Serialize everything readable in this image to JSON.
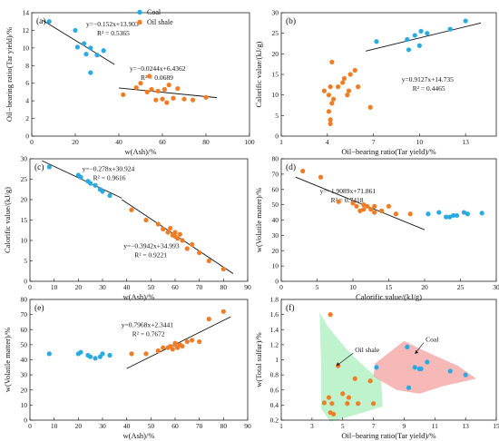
{
  "legend": {
    "series": [
      {
        "name": "Coal",
        "color": "#29abe2"
      },
      {
        "name": "Oil shale",
        "color": "#f07d23"
      }
    ]
  },
  "chart_data": [
    {
      "id": "a",
      "type": "scatter",
      "panel_label": "(a)",
      "xlabel": "w(Ash)/%",
      "ylabel": "Oil−bearing ratio(Tar yield)/%",
      "xlim": [
        0,
        100
      ],
      "ylim": [
        0,
        14
      ],
      "xticks": [
        0,
        20,
        40,
        60,
        80,
        100
      ],
      "yticks": [
        0,
        2,
        4,
        6,
        8,
        10,
        12,
        14
      ],
      "series": [
        {
          "name": "Coal",
          "color": "#29abe2",
          "x": [
            8,
            20,
            21,
            24,
            25,
            27,
            27,
            30,
            33
          ],
          "y": [
            13,
            12,
            10.1,
            10.5,
            9.3,
            7.2,
            10,
            9.2,
            9.7
          ]
        },
        {
          "name": "Oil shale",
          "color": "#f07d23",
          "x": [
            42,
            48,
            50,
            53,
            54,
            55,
            57,
            58,
            60,
            61,
            62,
            63,
            65,
            67,
            70,
            74,
            80
          ],
          "y": [
            4.7,
            5.5,
            6.0,
            5.0,
            6.8,
            5.3,
            4.1,
            5.1,
            4.2,
            5.3,
            3.8,
            5.8,
            4.3,
            5.4,
            4.2,
            4.1,
            4.4
          ]
        }
      ],
      "fits": [
        {
          "label": "y=−0.152x+13.903",
          "r2": "R² = 0.5365",
          "slope": -0.152,
          "intercept": 13.903,
          "x_range": [
            5,
            38
          ]
        },
        {
          "label": "y=−0.0244x+6.4362",
          "r2": "R² = 0.0689",
          "slope": -0.0244,
          "intercept": 6.4362,
          "x_range": [
            40,
            85
          ]
        }
      ]
    },
    {
      "id": "b",
      "type": "scatter",
      "panel_label": "(b)",
      "xlabel": "Oil−bearing ratio(Tar yield)/%",
      "ylabel": "Calorific value/(kJ/g)",
      "xlim": [
        1,
        15
      ],
      "ylim": [
        0,
        30
      ],
      "xticks": [
        1,
        4,
        7,
        10,
        13
      ],
      "yticks": [
        0,
        5,
        10,
        15,
        20,
        25,
        30
      ],
      "series": [
        {
          "name": "Coal",
          "color": "#29abe2",
          "x": [
            7.2,
            9.2,
            9.3,
            9.7,
            10.0,
            10.1,
            10.5,
            12.0,
            13.0
          ],
          "y": [
            23,
            23.5,
            21,
            24.5,
            22,
            25.5,
            25,
            26,
            28
          ]
        },
        {
          "name": "Oil shale",
          "color": "#f07d23",
          "x": [
            3.8,
            4.1,
            4.1,
            4.2,
            4.2,
            4.2,
            4.3,
            4.3,
            4.4,
            4.7,
            5.0,
            5.1,
            5.3,
            5.4,
            5.5,
            5.8,
            6.0,
            6.8
          ],
          "y": [
            11,
            10,
            6,
            4,
            3,
            12,
            8,
            18,
            9,
            12,
            13,
            14,
            10,
            11,
            15,
            16,
            12,
            7
          ]
        }
      ],
      "fits": [
        {
          "label": "y=0.9127x+14.735",
          "r2": "R² = 0.4465",
          "slope": 0.9127,
          "intercept": 14.735,
          "x_range": [
            6.5,
            14
          ]
        }
      ]
    },
    {
      "id": "c",
      "type": "scatter",
      "panel_label": "(c)",
      "xlabel": "w(Ash)/%",
      "ylabel": "Calorific value/(kJ/g)",
      "xlim": [
        0,
        90
      ],
      "ylim": [
        0,
        30
      ],
      "xticks": [
        0,
        10,
        20,
        30,
        40,
        50,
        60,
        70,
        80,
        90
      ],
      "yticks": [
        0,
        5,
        10,
        15,
        20,
        25,
        30
      ],
      "series": [
        {
          "name": "Coal",
          "color": "#29abe2",
          "x": [
            8,
            20,
            21,
            24,
            25,
            27,
            29,
            30,
            33
          ],
          "y": [
            28,
            26,
            25.5,
            24.5,
            24,
            23.5,
            22.5,
            22,
            21
          ]
        },
        {
          "name": "Oil shale",
          "color": "#f07d23",
          "x": [
            42,
            48,
            53,
            55,
            57,
            58,
            59,
            60,
            60,
            61,
            62,
            63,
            65,
            67,
            70,
            74,
            80
          ],
          "y": [
            17.5,
            15,
            14,
            12.8,
            12,
            13,
            11.3,
            11,
            12,
            10.5,
            11.5,
            10,
            8,
            9,
            7,
            5,
            3
          ]
        }
      ],
      "fits": [
        {
          "label": "y=−0.278x+30.924",
          "r2": "R² = 0.9616",
          "slope": -0.278,
          "intercept": 30.924,
          "x_range": [
            5,
            38
          ]
        },
        {
          "label": "y=−0.3942x+34.993",
          "r2": "R² = 0.9221",
          "slope": -0.3942,
          "intercept": 34.993,
          "x_range": [
            38,
            84
          ]
        }
      ]
    },
    {
      "id": "d",
      "type": "scatter",
      "panel_label": "(d)",
      "xlabel": "Calorific value/(kJ/g)",
      "ylabel": "w(Volatile matter)/%",
      "xlim": [
        0,
        30
      ],
      "ylim": [
        0,
        80
      ],
      "xticks": [
        0,
        5,
        10,
        15,
        20,
        25,
        30
      ],
      "yticks": [
        0,
        10,
        20,
        30,
        40,
        50,
        60,
        70,
        80
      ],
      "series": [
        {
          "name": "Coal",
          "color": "#29abe2",
          "x": [
            20.5,
            22,
            23,
            23.5,
            24,
            24.5,
            25.5,
            26,
            28
          ],
          "y": [
            44,
            45,
            42,
            42,
            43,
            43,
            45,
            44,
            44.5
          ]
        },
        {
          "name": "Oil shale",
          "color": "#f07d23",
          "x": [
            3,
            5.5,
            8,
            10,
            10.5,
            11,
            11.5,
            11.5,
            12,
            12.5,
            13,
            13,
            14,
            15,
            16,
            18
          ],
          "y": [
            72,
            68,
            52,
            51,
            49,
            46,
            50,
            47,
            49,
            47,
            49,
            45,
            46,
            49,
            44,
            44
          ]
        }
      ],
      "fits": [
        {
          "label": "y=−1.9089x+71.861",
          "r2": "R² = 0.7418",
          "slope": -1.9089,
          "intercept": 71.861,
          "x_range": [
            2,
            20
          ]
        }
      ]
    },
    {
      "id": "e",
      "type": "scatter",
      "panel_label": "(e)",
      "xlabel": "w(Ash)/%",
      "ylabel": "w(Volatile matter)/%",
      "xlim": [
        0,
        90
      ],
      "ylim": [
        0,
        80
      ],
      "xticks": [
        0,
        10,
        20,
        30,
        40,
        50,
        60,
        70,
        80,
        90
      ],
      "yticks": [
        0,
        10,
        20,
        30,
        40,
        50,
        60,
        70,
        80
      ],
      "series": [
        {
          "name": "Coal",
          "color": "#29abe2",
          "x": [
            8,
            20,
            21,
            24,
            25,
            27,
            29,
            30,
            33
          ],
          "y": [
            44,
            44,
            45,
            43,
            42,
            41,
            42,
            44,
            43
          ]
        },
        {
          "name": "Oil shale",
          "color": "#f07d23",
          "x": [
            42,
            48,
            53,
            55,
            57,
            58,
            59,
            60,
            60,
            61,
            62,
            63,
            65,
            67,
            70,
            74,
            80
          ],
          "y": [
            44,
            44,
            46,
            48,
            48,
            49,
            47,
            50,
            51,
            48,
            50,
            49,
            52,
            53,
            52,
            67,
            72
          ]
        }
      ],
      "fits": [
        {
          "label": "y=0.7968x+2.3441",
          "r2": "R² = 0.7672",
          "slope": 0.7968,
          "intercept": 2.3441,
          "x_range": [
            40,
            83
          ]
        }
      ]
    },
    {
      "id": "f",
      "type": "scatter",
      "panel_label": "(f)",
      "xlabel": "Oil−bearing ratio(Tar yield)/%",
      "ylabel": "w(Total sulfur)/%",
      "xlim": [
        1,
        15
      ],
      "ylim": [
        0.2,
        1.8
      ],
      "xticks": [
        1,
        3,
        5,
        7,
        9,
        11,
        13,
        15
      ],
      "yticks": [
        0.2,
        0.4,
        0.6,
        0.8,
        1.0,
        1.2,
        1.4,
        1.6,
        1.8
      ],
      "series": [
        {
          "name": "Coal",
          "color": "#29abe2",
          "x": [
            7.2,
            9.2,
            9.3,
            9.7,
            10.0,
            10.1,
            10.5,
            12.0,
            13.0
          ],
          "y": [
            0.9,
            1.17,
            0.63,
            0.9,
            0.88,
            0.88,
            0.97,
            0.85,
            0.8
          ]
        },
        {
          "name": "Oil shale",
          "color": "#f07d23",
          "x": [
            3.8,
            4.1,
            4.2,
            4.2,
            4.3,
            4.4,
            4.7,
            5.0,
            5.3,
            5.4,
            5.8,
            6.0,
            6.8,
            7.0
          ],
          "y": [
            0.43,
            0.5,
            1.6,
            0.3,
            0.42,
            0.28,
            0.92,
            0.55,
            0.42,
            0.5,
            0.75,
            0.42,
            0.72,
            0.42
          ]
        }
      ],
      "regions": [
        {
          "name": "Oil shale",
          "color": "#a8efbe",
          "annotation": "Oil shale"
        },
        {
          "name": "Coal",
          "color": "#f4a0a0",
          "annotation": "Coal"
        }
      ],
      "fits": []
    }
  ]
}
